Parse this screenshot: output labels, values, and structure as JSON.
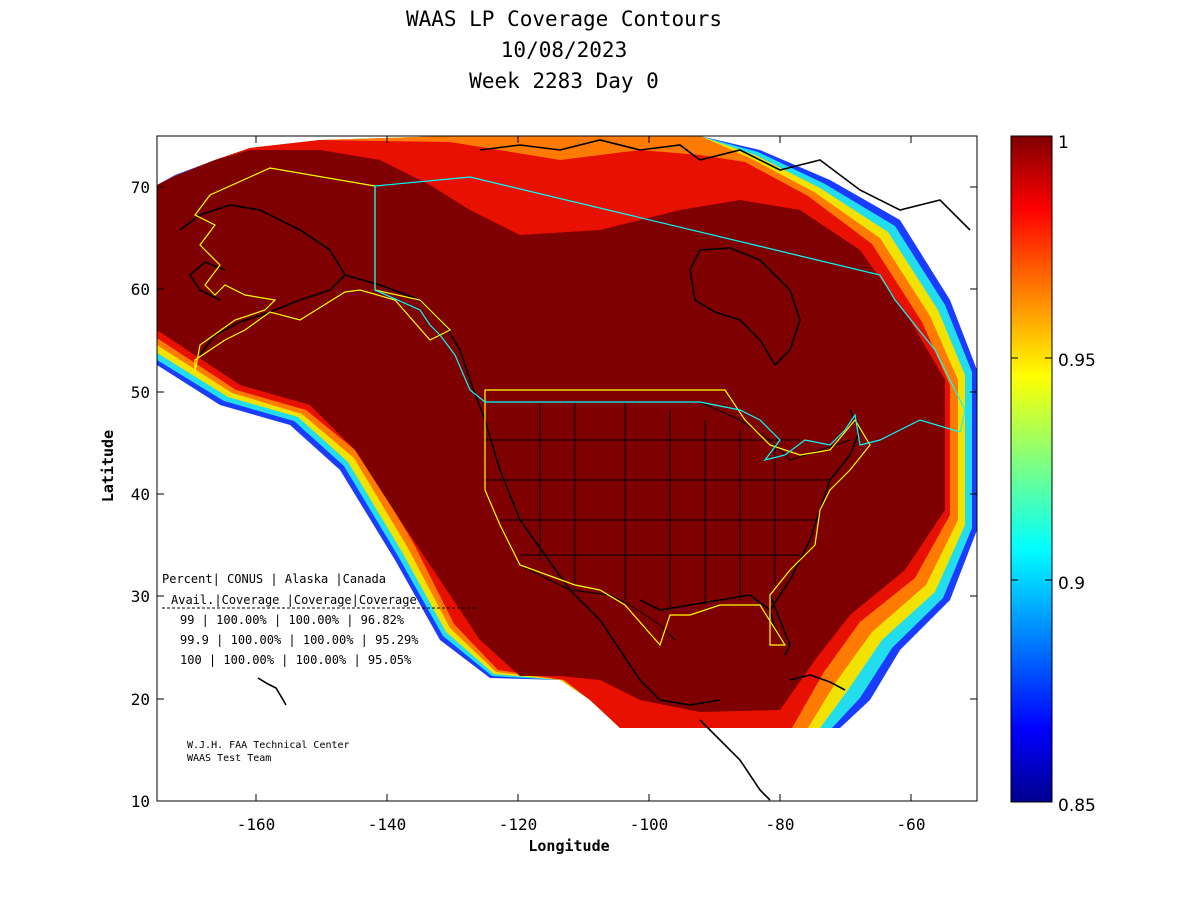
{
  "titles": {
    "line1": "WAAS LP Coverage Contours",
    "line2": "10/08/2023",
    "line3": "Week 2283 Day 0"
  },
  "axes": {
    "xlabel": "Longitude",
    "ylabel": "Latitude",
    "xlim": [
      -175,
      -50
    ],
    "ylim": [
      10,
      75
    ],
    "xticks": [
      "-160",
      "-140",
      "-120",
      "-100",
      "-80",
      "-60"
    ],
    "yticks": [
      "10",
      "20",
      "30",
      "40",
      "50",
      "60",
      "70"
    ]
  },
  "colorbar": {
    "range": [
      0.85,
      1
    ],
    "ticks": [
      "1",
      "0.95",
      "0.9",
      "0.85"
    ],
    "colormap": "jet"
  },
  "colors": {
    "full_coverage": "#7f0000",
    "state_borders": "#000000",
    "service_region_yellow": "#ffff00",
    "service_region_cyan": "#00ffff"
  },
  "table": {
    "header1": [
      "Percent",
      "CONUS",
      "Alaska",
      "Canada"
    ],
    "header2": [
      "Avail.",
      "Coverage",
      "Coverage",
      "Coverage"
    ],
    "rows": [
      [
        "99",
        "100.00%",
        "100.00%",
        "96.82%"
      ],
      [
        "99.9",
        "100.00%",
        "100.00%",
        "95.29%"
      ],
      [
        "100",
        "100.00%",
        "100.00%",
        "95.05%"
      ]
    ]
  },
  "credit": {
    "line1": "W.J.H. FAA Technical Center",
    "line2": "WAAS Test Team"
  },
  "chart_data": {
    "type": "heatmap",
    "title": "WAAS LP Coverage Contours",
    "xlabel": "Longitude",
    "ylabel": "Latitude",
    "xlim": [
      -175,
      -50
    ],
    "ylim": [
      10,
      75
    ],
    "value_range": [
      0.85,
      1
    ],
    "series": [
      {
        "name": "CONUS",
        "values": [
          1.0,
          1.0,
          1.0
        ]
      },
      {
        "name": "Alaska",
        "values": [
          1.0,
          1.0,
          1.0
        ]
      },
      {
        "name": "Canada",
        "values": [
          0.9682,
          0.9529,
          0.9505
        ]
      }
    ],
    "categories": [
      "99",
      "99.9",
      "100"
    ]
  }
}
